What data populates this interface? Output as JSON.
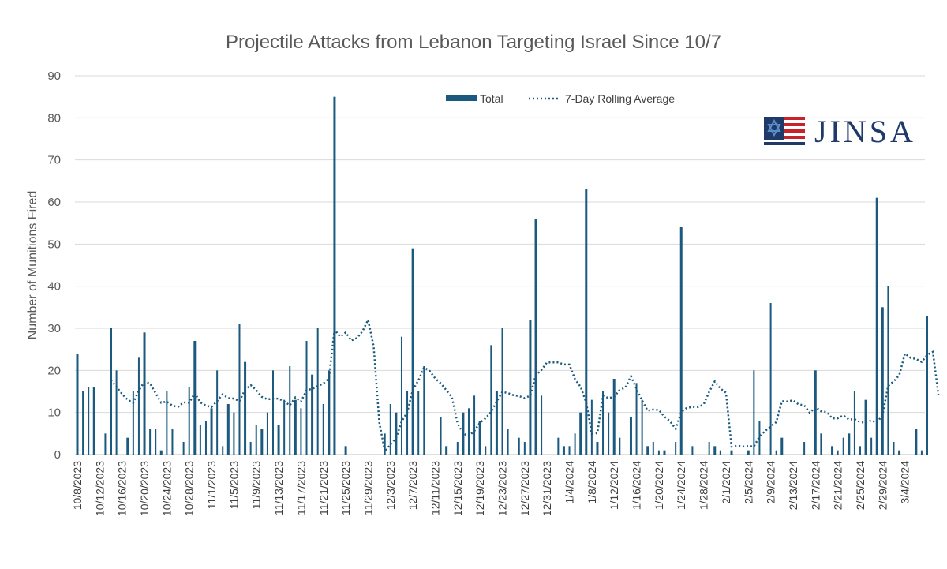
{
  "chart_data": {
    "type": "bar",
    "title": "Projectile Attacks from Lebanon Targeting Israel Since 10/7",
    "xlabel": "",
    "ylabel": "Number of Munitions Fired",
    "ylim": [
      0,
      90
    ],
    "yticks": [
      0,
      10,
      20,
      30,
      40,
      50,
      60,
      70,
      80,
      90
    ],
    "grid": true,
    "legend_position": "top-center",
    "start_date": "10/8/2023",
    "end_date": "3/4/2024",
    "x_tick_labels": [
      "10/8/2023",
      "10/12/2023",
      "10/16/2023",
      "10/20/2023",
      "10/24/2023",
      "10/28/2023",
      "11/1/2023",
      "11/5/2023",
      "11/9/2023",
      "11/13/2023",
      "11/17/2023",
      "11/21/2023",
      "11/25/2023",
      "11/29/2023",
      "12/3/2023",
      "12/7/2023",
      "12/11/2023",
      "12/15/2023",
      "12/19/2023",
      "12/23/2023",
      "12/27/2023",
      "12/31/2023",
      "1/4/2024",
      "1/8/2024",
      "1/12/2024",
      "1/16/2024",
      "1/20/2024",
      "1/24/2024",
      "1/28/2024",
      "2/1/2024",
      "2/5/2024",
      "2/9/2024",
      "2/13/2024",
      "2/17/2024",
      "2/21/2024",
      "2/25/2024",
      "2/29/2024",
      "3/4/2024"
    ],
    "series": [
      {
        "name": "Total",
        "style": "bar",
        "color": "#1b5a7e",
        "values": [
          24,
          15,
          16,
          16,
          0,
          5,
          30,
          20,
          0,
          4,
          15,
          23,
          29,
          6,
          6,
          1,
          15,
          6,
          0,
          3,
          16,
          27,
          7,
          8,
          11,
          20,
          2,
          12,
          10,
          31,
          22,
          3,
          7,
          6,
          10,
          20,
          7,
          13,
          21,
          13,
          11,
          27,
          19,
          30,
          12,
          20,
          85,
          0,
          2,
          0,
          0,
          0,
          0,
          0,
          0,
          5,
          12,
          10,
          28,
          15,
          49,
          15,
          21,
          0,
          0,
          9,
          2,
          0,
          3,
          10,
          11,
          14,
          8,
          2,
          26,
          15,
          30,
          6,
          0,
          4,
          3,
          32,
          56,
          14,
          0,
          0,
          4,
          2,
          2,
          5,
          10,
          63,
          13,
          3,
          15,
          10,
          18,
          4,
          0,
          9,
          17,
          13,
          2,
          3,
          1,
          1,
          0,
          3,
          54,
          0,
          2,
          0,
          0,
          3,
          2,
          1,
          0,
          1,
          0,
          0,
          1,
          20,
          8,
          0,
          36,
          1,
          4,
          0,
          0,
          0,
          3,
          0,
          20,
          5,
          0,
          2,
          1,
          4,
          5,
          15,
          2,
          13,
          4,
          61,
          35,
          40,
          3,
          1,
          0,
          0,
          6,
          1,
          33
        ]
      },
      {
        "name": "7-Day Rolling Average",
        "style": "dotted-line",
        "color": "#1b5a7e",
        "values": [
          null,
          null,
          null,
          null,
          null,
          null,
          17.7,
          16.1,
          14.4,
          13,
          12.3,
          15.2,
          17.3,
          16.9,
          14.6,
          12.3,
          12.6,
          11.6,
          11.3,
          12.4,
          12.3,
          14.6,
          12.4,
          11.6,
          11.3,
          12.7,
          14.3,
          13.4,
          13.3,
          12.7,
          15.4,
          16.5,
          15.3,
          13.7,
          13.1,
          13.3,
          13.3,
          12.6,
          11.7,
          13.6,
          12.6,
          15.3,
          15.6,
          16.3,
          16.9,
          18.1,
          29.7,
          28,
          29,
          27.1,
          27.7,
          29.3,
          32,
          25.7,
          7.7,
          0.7,
          2.4,
          3.9,
          7.9,
          10,
          15.4,
          17.6,
          20.7,
          19.9,
          18.1,
          16.9,
          15.3,
          13.6,
          7.4,
          5,
          4.4,
          5.6,
          7.6,
          8.6,
          10.1,
          12.6,
          14.9,
          14.6,
          14.1,
          13.9,
          13.4,
          14,
          18.9,
          20.1,
          21.9,
          21.9,
          21.9,
          21.4,
          21.4,
          17.9,
          16.1,
          12.4,
          4.9,
          5.1,
          14,
          13.4,
          13.7,
          15.4,
          15.9,
          18.6,
          15.6,
          12.9,
          10.4,
          10.7,
          10.6,
          9,
          7.9,
          6.1,
          10.1,
          11.1,
          11.3,
          11.3,
          11.9,
          14.9,
          17.4,
          15.7,
          14.7,
          1.9,
          2.1,
          1.9,
          2,
          1.9,
          4.3,
          5.6,
          6.7,
          7.7,
          12.7,
          12.6,
          12.9,
          11.9,
          11.7,
          9.9,
          11.3,
          10.3,
          10.1,
          8.6,
          8.6,
          9.3,
          8.3,
          8.4,
          7.7,
          7.6,
          8.1,
          7.6,
          9.4,
          16.3,
          17.4,
          18.9,
          24,
          23,
          22.7,
          22,
          23.7,
          24.4,
          14.1
        ]
      }
    ]
  },
  "logo": {
    "text": "JINSA",
    "colors": {
      "navy": "#1f3a68",
      "red": "#c8232c",
      "blue_star": "#5b8ec8"
    }
  }
}
